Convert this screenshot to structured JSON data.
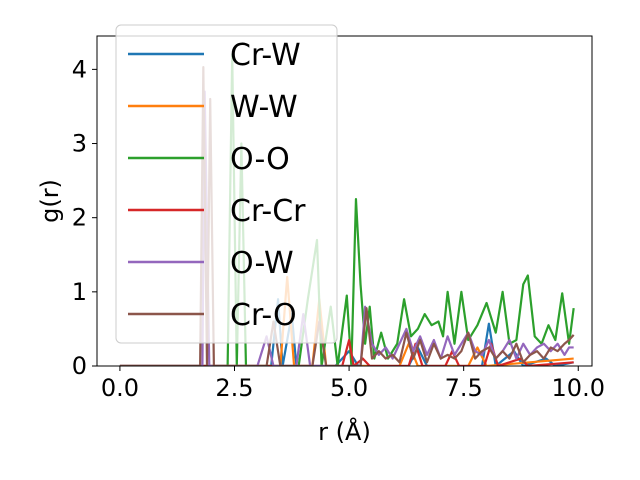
{
  "chart_data": {
    "type": "line",
    "xlabel": "r (Å)",
    "ylabel": "g(r)",
    "xlim": [
      -0.5,
      10.3
    ],
    "ylim": [
      0,
      4.45
    ],
    "xticks": [
      0.0,
      2.5,
      5.0,
      7.5,
      10.0
    ],
    "xtick_labels": [
      "0.0",
      "2.5",
      "5.0",
      "7.5",
      "10.0"
    ],
    "yticks": [
      0,
      1,
      2,
      3,
      4
    ],
    "ytick_labels": [
      "0",
      "1",
      "2",
      "3",
      "4"
    ],
    "grid": false,
    "legend_position": "top-left",
    "series": [
      {
        "name": "Cr-W",
        "color": "#1f77b4",
        "points": [
          [
            0,
            0
          ],
          [
            3.3,
            0
          ],
          [
            3.45,
            0.9
          ],
          [
            3.55,
            0
          ],
          [
            3.75,
            0.7
          ],
          [
            3.85,
            0
          ],
          [
            4.7,
            0
          ],
          [
            5.0,
            0.2
          ],
          [
            5.2,
            0
          ],
          [
            6.3,
            0
          ],
          [
            6.5,
            0.25
          ],
          [
            6.7,
            0
          ],
          [
            7.9,
            0
          ],
          [
            8.05,
            0.57
          ],
          [
            8.2,
            0
          ],
          [
            8.6,
            0.2
          ],
          [
            8.8,
            0
          ],
          [
            9.3,
            0.1
          ],
          [
            9.5,
            0
          ],
          [
            9.9,
            0.05
          ]
        ]
      },
      {
        "name": "W-W",
        "color": "#ff7f0e",
        "points": [
          [
            0,
            0
          ],
          [
            3.5,
            0
          ],
          [
            3.65,
            1.2
          ],
          [
            3.8,
            0
          ],
          [
            4.2,
            0
          ],
          [
            4.35,
            0.9
          ],
          [
            4.5,
            0
          ],
          [
            6.1,
            0
          ],
          [
            6.3,
            0.3
          ],
          [
            6.5,
            0
          ],
          [
            7.6,
            0
          ],
          [
            7.8,
            0.25
          ],
          [
            8.0,
            0
          ],
          [
            9.9,
            0.1
          ]
        ]
      },
      {
        "name": "O-O",
        "color": "#2ca02c",
        "points": [
          [
            0,
            0
          ],
          [
            2.35,
            0
          ],
          [
            2.45,
            4.2
          ],
          [
            2.55,
            0
          ],
          [
            2.65,
            3.0
          ],
          [
            2.75,
            0
          ],
          [
            3.9,
            0
          ],
          [
            4.1,
            0.9
          ],
          [
            4.3,
            1.7
          ],
          [
            4.4,
            0
          ],
          [
            4.6,
            0.8
          ],
          [
            4.75,
            0
          ],
          [
            4.95,
            0.95
          ],
          [
            5.05,
            0
          ],
          [
            5.15,
            2.25
          ],
          [
            5.25,
            1.1
          ],
          [
            5.35,
            0.3
          ],
          [
            5.45,
            0.8
          ],
          [
            5.55,
            0.1
          ],
          [
            5.7,
            0.45
          ],
          [
            5.85,
            0.1
          ],
          [
            6.05,
            0.3
          ],
          [
            6.2,
            0.9
          ],
          [
            6.35,
            0.4
          ],
          [
            6.5,
            0.5
          ],
          [
            6.65,
            0.7
          ],
          [
            6.8,
            0.55
          ],
          [
            6.95,
            0.6
          ],
          [
            7.05,
            0.4
          ],
          [
            7.15,
            1.0
          ],
          [
            7.3,
            0.3
          ],
          [
            7.45,
            1.0
          ],
          [
            7.6,
            0.35
          ],
          [
            7.8,
            0.55
          ],
          [
            8.0,
            0.85
          ],
          [
            8.2,
            0.45
          ],
          [
            8.35,
            1.0
          ],
          [
            8.5,
            0.3
          ],
          [
            8.65,
            0.35
          ],
          [
            8.8,
            1.1
          ],
          [
            8.9,
            1.22
          ],
          [
            9.05,
            0.4
          ],
          [
            9.2,
            0.3
          ],
          [
            9.35,
            0.55
          ],
          [
            9.5,
            0.35
          ],
          [
            9.65,
            0.98
          ],
          [
            9.8,
            0.3
          ],
          [
            9.9,
            0.78
          ]
        ]
      },
      {
        "name": "Cr-Cr",
        "color": "#d62728",
        "points": [
          [
            0,
            0
          ],
          [
            4.85,
            0
          ],
          [
            5.0,
            0.35
          ],
          [
            5.1,
            0
          ],
          [
            5.3,
            0.1
          ],
          [
            5.45,
            0
          ],
          [
            6.3,
            0
          ],
          [
            6.45,
            0.3
          ],
          [
            6.6,
            0
          ],
          [
            7.1,
            0
          ],
          [
            7.25,
            0.2
          ],
          [
            7.4,
            0
          ],
          [
            7.95,
            0
          ],
          [
            8.1,
            0.3
          ],
          [
            8.25,
            0
          ],
          [
            8.75,
            0.1
          ],
          [
            8.9,
            0
          ],
          [
            9.9,
            0.05
          ]
        ]
      },
      {
        "name": "O-W",
        "color": "#9467bd",
        "points": [
          [
            0,
            0
          ],
          [
            1.8,
            0
          ],
          [
            1.85,
            3.7
          ],
          [
            1.95,
            0
          ],
          [
            3.0,
            0
          ],
          [
            3.2,
            0.4
          ],
          [
            3.35,
            0
          ],
          [
            3.85,
            0
          ],
          [
            4.0,
            0.7
          ],
          [
            4.15,
            0
          ],
          [
            5.25,
            0
          ],
          [
            5.35,
            0.8
          ],
          [
            5.5,
            0.3
          ],
          [
            5.65,
            0.15
          ],
          [
            5.8,
            0.25
          ],
          [
            5.95,
            0.1
          ],
          [
            6.1,
            0.3
          ],
          [
            6.25,
            0.5
          ],
          [
            6.4,
            0.2
          ],
          [
            6.55,
            0.4
          ],
          [
            6.7,
            0.15
          ],
          [
            6.85,
            0.35
          ],
          [
            7.0,
            0.1
          ],
          [
            7.15,
            0.4
          ],
          [
            7.3,
            0.15
          ],
          [
            7.45,
            0.3
          ],
          [
            7.6,
            0.45
          ],
          [
            7.75,
            0.2
          ],
          [
            7.9,
            0.15
          ],
          [
            8.05,
            0.35
          ],
          [
            8.2,
            0.1
          ],
          [
            8.35,
            0.2
          ],
          [
            8.5,
            0.35
          ],
          [
            8.65,
            0.1
          ],
          [
            8.8,
            0.3
          ],
          [
            8.95,
            0.15
          ],
          [
            9.1,
            0.25
          ],
          [
            9.25,
            0.3
          ],
          [
            9.4,
            0.2
          ],
          [
            9.55,
            0.3
          ],
          [
            9.7,
            0.15
          ],
          [
            9.8,
            0.25
          ],
          [
            9.9,
            0.25
          ]
        ]
      },
      {
        "name": "Cr-O",
        "color": "#8c564b",
        "points": [
          [
            0,
            0
          ],
          [
            1.75,
            0
          ],
          [
            1.82,
            4.03
          ],
          [
            1.9,
            0
          ],
          [
            1.97,
            3.6
          ],
          [
            2.05,
            0
          ],
          [
            3.2,
            0
          ],
          [
            3.35,
            0.6
          ],
          [
            3.5,
            0
          ],
          [
            4.2,
            0
          ],
          [
            4.35,
            0.6
          ],
          [
            4.5,
            0
          ],
          [
            5.25,
            0
          ],
          [
            5.38,
            0.78
          ],
          [
            5.5,
            0.1
          ],
          [
            5.65,
            0.2
          ],
          [
            5.8,
            0.1
          ],
          [
            5.95,
            0.15
          ],
          [
            6.1,
            0.05
          ],
          [
            6.25,
            0.45
          ],
          [
            6.4,
            0.1
          ],
          [
            6.55,
            0.35
          ],
          [
            6.7,
            0.05
          ],
          [
            6.85,
            0.3
          ],
          [
            7.0,
            0.1
          ],
          [
            7.15,
            0.15
          ],
          [
            7.3,
            0.1
          ],
          [
            7.45,
            0.2
          ],
          [
            7.6,
            0.45
          ],
          [
            7.75,
            0.1
          ],
          [
            7.9,
            0.2
          ],
          [
            8.05,
            0.25
          ],
          [
            8.2,
            0.1
          ],
          [
            8.35,
            0.2
          ],
          [
            8.5,
            0.1
          ],
          [
            8.65,
            0.3
          ],
          [
            8.8,
            0.05
          ],
          [
            8.95,
            0.15
          ],
          [
            9.1,
            0.2
          ],
          [
            9.25,
            0.1
          ],
          [
            9.4,
            0.25
          ],
          [
            9.55,
            0.2
          ],
          [
            9.7,
            0.3
          ],
          [
            9.8,
            0.35
          ],
          [
            9.9,
            0.42
          ]
        ]
      }
    ]
  }
}
